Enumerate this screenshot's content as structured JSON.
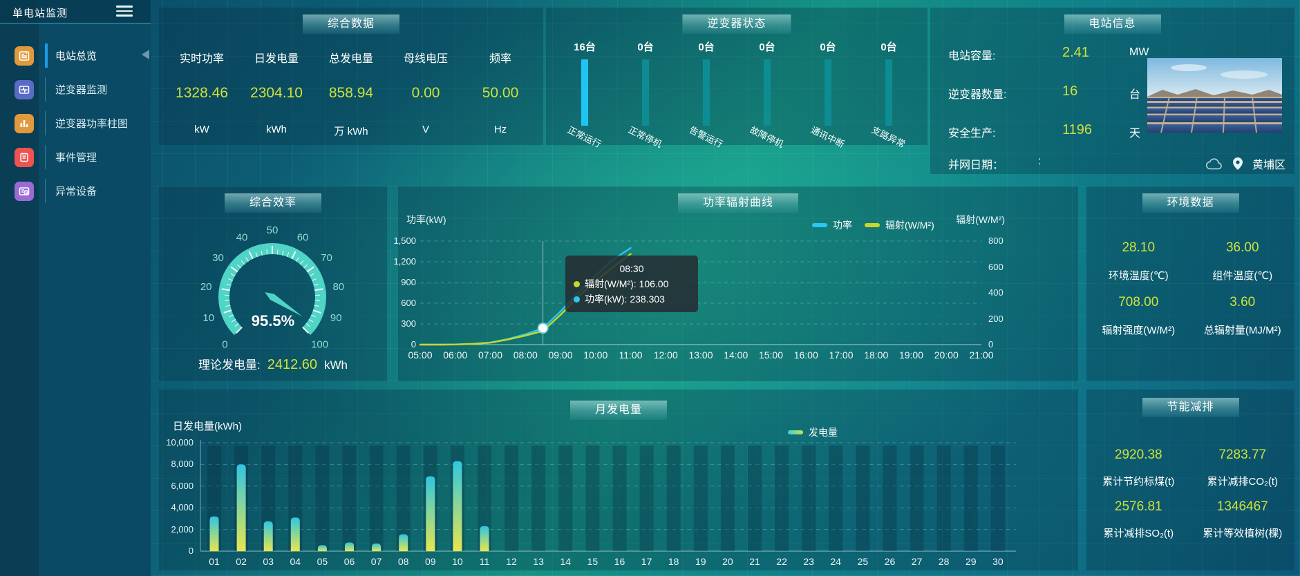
{
  "app": {
    "title": "单电站监测"
  },
  "colors": {
    "accent_yellow": "#cfe23a",
    "power_line": "#2bc7f0",
    "radiation_line": "#c9d62c",
    "inverter_bar_active": "#1ec4f4",
    "inverter_bar_idle": "#0d8f96",
    "gauge_arc": "#4fd4c6",
    "gauge_tick_label": "#8fdcd3",
    "bar_gradient_top": "#2fc6e0",
    "bar_gradient_bottom": "#e9e64d",
    "active_menu_bar": "#1e9be8"
  },
  "sidebar": {
    "items": [
      {
        "label": "电站总览",
        "icon": "overview-icon",
        "icon_color": "#e09a3c",
        "active": true
      },
      {
        "label": "逆变器监测",
        "icon": "inverter-monitor-icon",
        "icon_color": "#5a6bc5",
        "active": false
      },
      {
        "label": "逆变器功率柱图",
        "icon": "power-bars-icon",
        "icon_color": "#e09a3c",
        "active": false
      },
      {
        "label": "事件管理",
        "icon": "event-log-icon",
        "icon_color": "#ef5350",
        "active": false
      },
      {
        "label": "异常设备",
        "icon": "abnormal-device-icon",
        "icon_color": "#9b6bd4",
        "active": false
      }
    ]
  },
  "panels": {
    "summary": {
      "title": "综合数据",
      "metrics": [
        {
          "label": "实时功率",
          "value": "1328.46",
          "unit": "kW"
        },
        {
          "label": "日发电量",
          "value": "2304.10",
          "unit": "kWh"
        },
        {
          "label": "总发电量",
          "value": "858.94",
          "unit": "万 kWh"
        },
        {
          "label": "母线电压",
          "value": "0.00",
          "unit": "V"
        },
        {
          "label": "频率",
          "value": "50.00",
          "unit": "Hz"
        }
      ]
    },
    "inverter_status": {
      "title": "逆变器状态",
      "bars": [
        {
          "count": "16台",
          "label": "正常运行",
          "highlight": true
        },
        {
          "count": "0台",
          "label": "正常停机",
          "highlight": false
        },
        {
          "count": "0台",
          "label": "告警运行",
          "highlight": false
        },
        {
          "count": "0台",
          "label": "故障停机",
          "highlight": false
        },
        {
          "count": "0台",
          "label": "通讯中断",
          "highlight": false
        },
        {
          "count": "0台",
          "label": "支路异常",
          "highlight": false
        }
      ]
    },
    "station_info": {
      "title": "电站信息",
      "rows": [
        {
          "label": "电站容量:",
          "value": "2.41",
          "unit": "MW"
        },
        {
          "label": "逆变器数量:",
          "value": "16",
          "unit": "台"
        },
        {
          "label": "安全生产:",
          "value": "1196",
          "unit": "天"
        },
        {
          "label": "并网日期：",
          "value": ":",
          "unit": ""
        }
      ],
      "location": "黄埔区"
    },
    "efficiency": {
      "title": "综合效率",
      "gauge_display": "95.5%",
      "theory_label": "理论发电量:",
      "theory_value": "2412.60",
      "theory_unit": "kWh"
    },
    "power_radiation": {
      "title": "功率辐射曲线",
      "left_axis_title": "功率(kW)",
      "right_axis_title": "辐射(W/M²)",
      "legend": [
        {
          "label": "功率",
          "color": "#2bc7f0"
        },
        {
          "label": "辐射(W/M²)",
          "color": "#c9d62c"
        }
      ],
      "tooltip": {
        "time": "08:30",
        "rows": [
          {
            "text": "辐射(W/M²): 106.00",
            "color": "#c9d62c"
          },
          {
            "text": "功率(kW): 238.303",
            "color": "#2bc7f0"
          }
        ]
      }
    },
    "environment": {
      "title": "环境数据",
      "cells": [
        {
          "value": "28.10",
          "label": "环境温度(℃)"
        },
        {
          "value": "36.00",
          "label": "组件温度(℃)"
        },
        {
          "value": "708.00",
          "label": "辐射强度(W/M²)"
        },
        {
          "value": "3.60",
          "label": "总辐射量(MJ/M²)"
        }
      ]
    },
    "monthly": {
      "title": "月发电量",
      "ylabel": "日发电量(kWh)",
      "legend_label": "发电量"
    },
    "savings": {
      "title": "节能减排",
      "cells": [
        {
          "value": "2920.38",
          "label": "累计节约标煤(t)"
        },
        {
          "value": "7283.77",
          "label": "累计减排CO₂(t)"
        },
        {
          "value": "2576.81",
          "label": "累计减排SO₂(t)"
        },
        {
          "value": "1346467",
          "label": "累计等效植树(棵)"
        }
      ]
    }
  },
  "chart_data": [
    {
      "id": "power_radiation_curve",
      "type": "line",
      "title": "功率辐射曲线",
      "x_ticks": [
        "05:00",
        "06:00",
        "07:00",
        "08:00",
        "09:00",
        "10:00",
        "11:00",
        "12:00",
        "13:00",
        "14:00",
        "15:00",
        "16:00",
        "17:00",
        "18:00",
        "19:00",
        "20:00",
        "21:00"
      ],
      "x_range_hours": [
        5,
        21
      ],
      "y_left": {
        "label": "功率(kW)",
        "max": 1500,
        "ticks": [
          "1,500",
          "1,200",
          "900",
          "600",
          "300",
          "0"
        ]
      },
      "y_right": {
        "label": "辐射(W/M²)",
        "max": 800,
        "ticks": [
          "800",
          "600",
          "400",
          "200",
          "0"
        ]
      },
      "legend_position": "top-right",
      "grid": true,
      "series": [
        {
          "name": "功率",
          "unit": "kW",
          "axis": "left",
          "color": "#2bc7f0",
          "points": [
            [
              5,
              0
            ],
            [
              5.5,
              0
            ],
            [
              6,
              3
            ],
            [
              6.5,
              10
            ],
            [
              7,
              30
            ],
            [
              7.5,
              80
            ],
            [
              8,
              150
            ],
            [
              8.5,
              238.303
            ],
            [
              9,
              480
            ],
            [
              9.5,
              750
            ],
            [
              10,
              1000
            ],
            [
              10.5,
              1230
            ],
            [
              11,
              1400
            ]
          ]
        },
        {
          "name": "辐射(W/M²)",
          "unit": "W/M²",
          "axis": "right",
          "color": "#c9d62c",
          "points": [
            [
              5,
              0
            ],
            [
              5.5,
              0
            ],
            [
              6,
              1
            ],
            [
              6.5,
              6
            ],
            [
              7,
              15
            ],
            [
              7.5,
              40
            ],
            [
              8,
              70
            ],
            [
              8.5,
              106
            ],
            [
              9,
              230
            ],
            [
              9.5,
              370
            ],
            [
              10,
              490
            ],
            [
              10.5,
              600
            ],
            [
              11,
              700
            ]
          ]
        }
      ],
      "crosshair": {
        "x_hour": 8.5,
        "time": "08:30",
        "power": 238.303,
        "radiation": 106.0
      }
    },
    {
      "id": "monthly_generation",
      "type": "bar",
      "title": "月发电量",
      "ylabel": "日发电量(kWh)",
      "ylim": [
        0,
        10000
      ],
      "y_ticks": [
        "10,000",
        "8,000",
        "6,000",
        "4,000",
        "2,000",
        "0"
      ],
      "legend": [
        "发电量"
      ],
      "categories": [
        "01",
        "02",
        "03",
        "04",
        "05",
        "06",
        "07",
        "08",
        "09",
        "10",
        "11",
        "12",
        "13",
        "14",
        "15",
        "16",
        "17",
        "18",
        "19",
        "20",
        "21",
        "22",
        "23",
        "24",
        "25",
        "26",
        "27",
        "28",
        "29",
        "30"
      ],
      "values": [
        3200,
        8000,
        2750,
        3100,
        550,
        800,
        700,
        1550,
        6900,
        8300,
        2300,
        0,
        0,
        0,
        0,
        0,
        0,
        0,
        0,
        0,
        0,
        0,
        0,
        0,
        0,
        0,
        0,
        0,
        0,
        0
      ]
    },
    {
      "id": "efficiency_gauge",
      "type": "gauge",
      "title": "综合效率",
      "min": 0,
      "max": 100,
      "value": 95.5,
      "tick_label_step": 10
    },
    {
      "id": "inverter_status_bars",
      "type": "bar",
      "categories": [
        "正常运行",
        "正常停机",
        "告警运行",
        "故障停机",
        "通讯中断",
        "支路异常"
      ],
      "values": [
        16,
        0,
        0,
        0,
        0,
        0
      ]
    }
  ]
}
